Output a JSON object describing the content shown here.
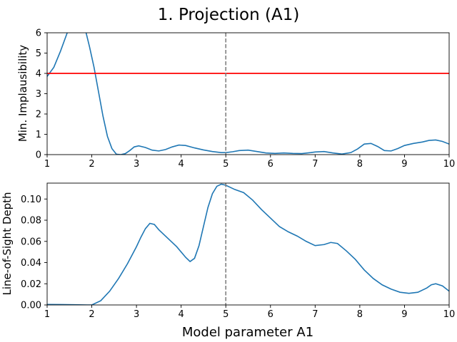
{
  "chart_data": {
    "title": "1. Projection (A1)",
    "xlabel": "Model parameter A1",
    "panels": [
      {
        "type": "line",
        "ylabel": "Min. Implausibility",
        "xlim": [
          1,
          10
        ],
        "ylim": [
          0,
          6
        ],
        "xticks": [
          "1",
          "2",
          "3",
          "4",
          "5",
          "6",
          "7",
          "8",
          "9",
          "10"
        ],
        "yticks": [
          "0",
          "1",
          "2",
          "3",
          "4",
          "5",
          "6"
        ],
        "series": [
          {
            "color": "#1f77b4",
            "x": [
              1.0,
              1.15,
              1.3,
              1.45,
              1.55,
              1.65,
              1.75,
              1.85,
              1.95,
              2.05,
              2.15,
              2.25,
              2.35,
              2.45,
              2.55,
              2.65,
              2.75,
              2.85,
              2.95,
              3.05,
              3.2,
              3.35,
              3.5,
              3.65,
              3.8,
              3.95,
              4.1,
              4.3,
              4.5,
              4.7,
              4.9,
              5.0,
              5.15,
              5.3,
              5.5,
              5.7,
              5.9,
              6.1,
              6.3,
              6.5,
              6.7,
              6.9,
              7.0,
              7.2,
              7.4,
              7.6,
              7.8,
              7.95,
              8.1,
              8.25,
              8.4,
              8.55,
              8.7,
              8.85,
              9.0,
              9.2,
              9.4,
              9.55,
              9.7,
              9.85,
              10.0
            ],
            "y": [
              3.85,
              4.3,
              5.1,
              6.0,
              6.5,
              6.8,
              6.7,
              6.2,
              5.3,
              4.3,
              3.1,
              1.9,
              0.9,
              0.3,
              0.02,
              0.0,
              0.05,
              0.2,
              0.38,
              0.43,
              0.35,
              0.22,
              0.18,
              0.25,
              0.38,
              0.47,
              0.45,
              0.33,
              0.23,
              0.15,
              0.1,
              0.1,
              0.14,
              0.2,
              0.22,
              0.15,
              0.08,
              0.06,
              0.08,
              0.06,
              0.05,
              0.1,
              0.13,
              0.15,
              0.08,
              0.03,
              0.1,
              0.28,
              0.52,
              0.55,
              0.4,
              0.2,
              0.18,
              0.3,
              0.45,
              0.55,
              0.62,
              0.7,
              0.72,
              0.65,
              0.52
            ]
          }
        ],
        "hlines": [
          {
            "y": 4,
            "color": "#ff0000"
          }
        ],
        "vlines": [
          {
            "x": 5,
            "color": "#808080",
            "style": "dashed"
          }
        ]
      },
      {
        "type": "line",
        "ylabel": "Line-of-Sight Depth",
        "xlim": [
          1,
          10
        ],
        "ylim": [
          0,
          0.115
        ],
        "xticks": [
          "1",
          "2",
          "3",
          "4",
          "5",
          "6",
          "7",
          "8",
          "9",
          "10"
        ],
        "yticks": [
          "0.00",
          "0.02",
          "0.04",
          "0.06",
          "0.08",
          "0.10"
        ],
        "ytick_values": [
          0,
          0.02,
          0.04,
          0.06,
          0.08,
          0.1
        ],
        "series": [
          {
            "color": "#1f77b4",
            "x": [
              1.0,
              1.3,
              1.6,
              1.9,
              2.0,
              2.2,
              2.4,
              2.6,
              2.8,
              3.0,
              3.1,
              3.2,
              3.3,
              3.4,
              3.5,
              3.7,
              3.9,
              4.1,
              4.2,
              4.3,
              4.4,
              4.5,
              4.6,
              4.7,
              4.8,
              4.9,
              5.0,
              5.1,
              5.2,
              5.4,
              5.6,
              5.8,
              6.0,
              6.2,
              6.4,
              6.6,
              6.8,
              7.0,
              7.2,
              7.35,
              7.5,
              7.7,
              7.9,
              8.1,
              8.3,
              8.5,
              8.7,
              8.9,
              9.1,
              9.3,
              9.5,
              9.6,
              9.7,
              9.85,
              10.0
            ],
            "y": [
              0.0005,
              0.0004,
              0.0002,
              0.0,
              0.0,
              0.004,
              0.013,
              0.025,
              0.039,
              0.055,
              0.064,
              0.072,
              0.077,
              0.076,
              0.071,
              0.063,
              0.055,
              0.045,
              0.041,
              0.044,
              0.056,
              0.074,
              0.092,
              0.105,
              0.112,
              0.114,
              0.113,
              0.111,
              0.109,
              0.106,
              0.099,
              0.09,
              0.082,
              0.074,
              0.069,
              0.065,
              0.06,
              0.056,
              0.057,
              0.059,
              0.058,
              0.051,
              0.043,
              0.033,
              0.025,
              0.019,
              0.015,
              0.012,
              0.011,
              0.012,
              0.016,
              0.019,
              0.02,
              0.018,
              0.013
            ]
          }
        ],
        "vlines": [
          {
            "x": 5,
            "color": "#808080",
            "style": "dashed"
          }
        ]
      }
    ]
  }
}
